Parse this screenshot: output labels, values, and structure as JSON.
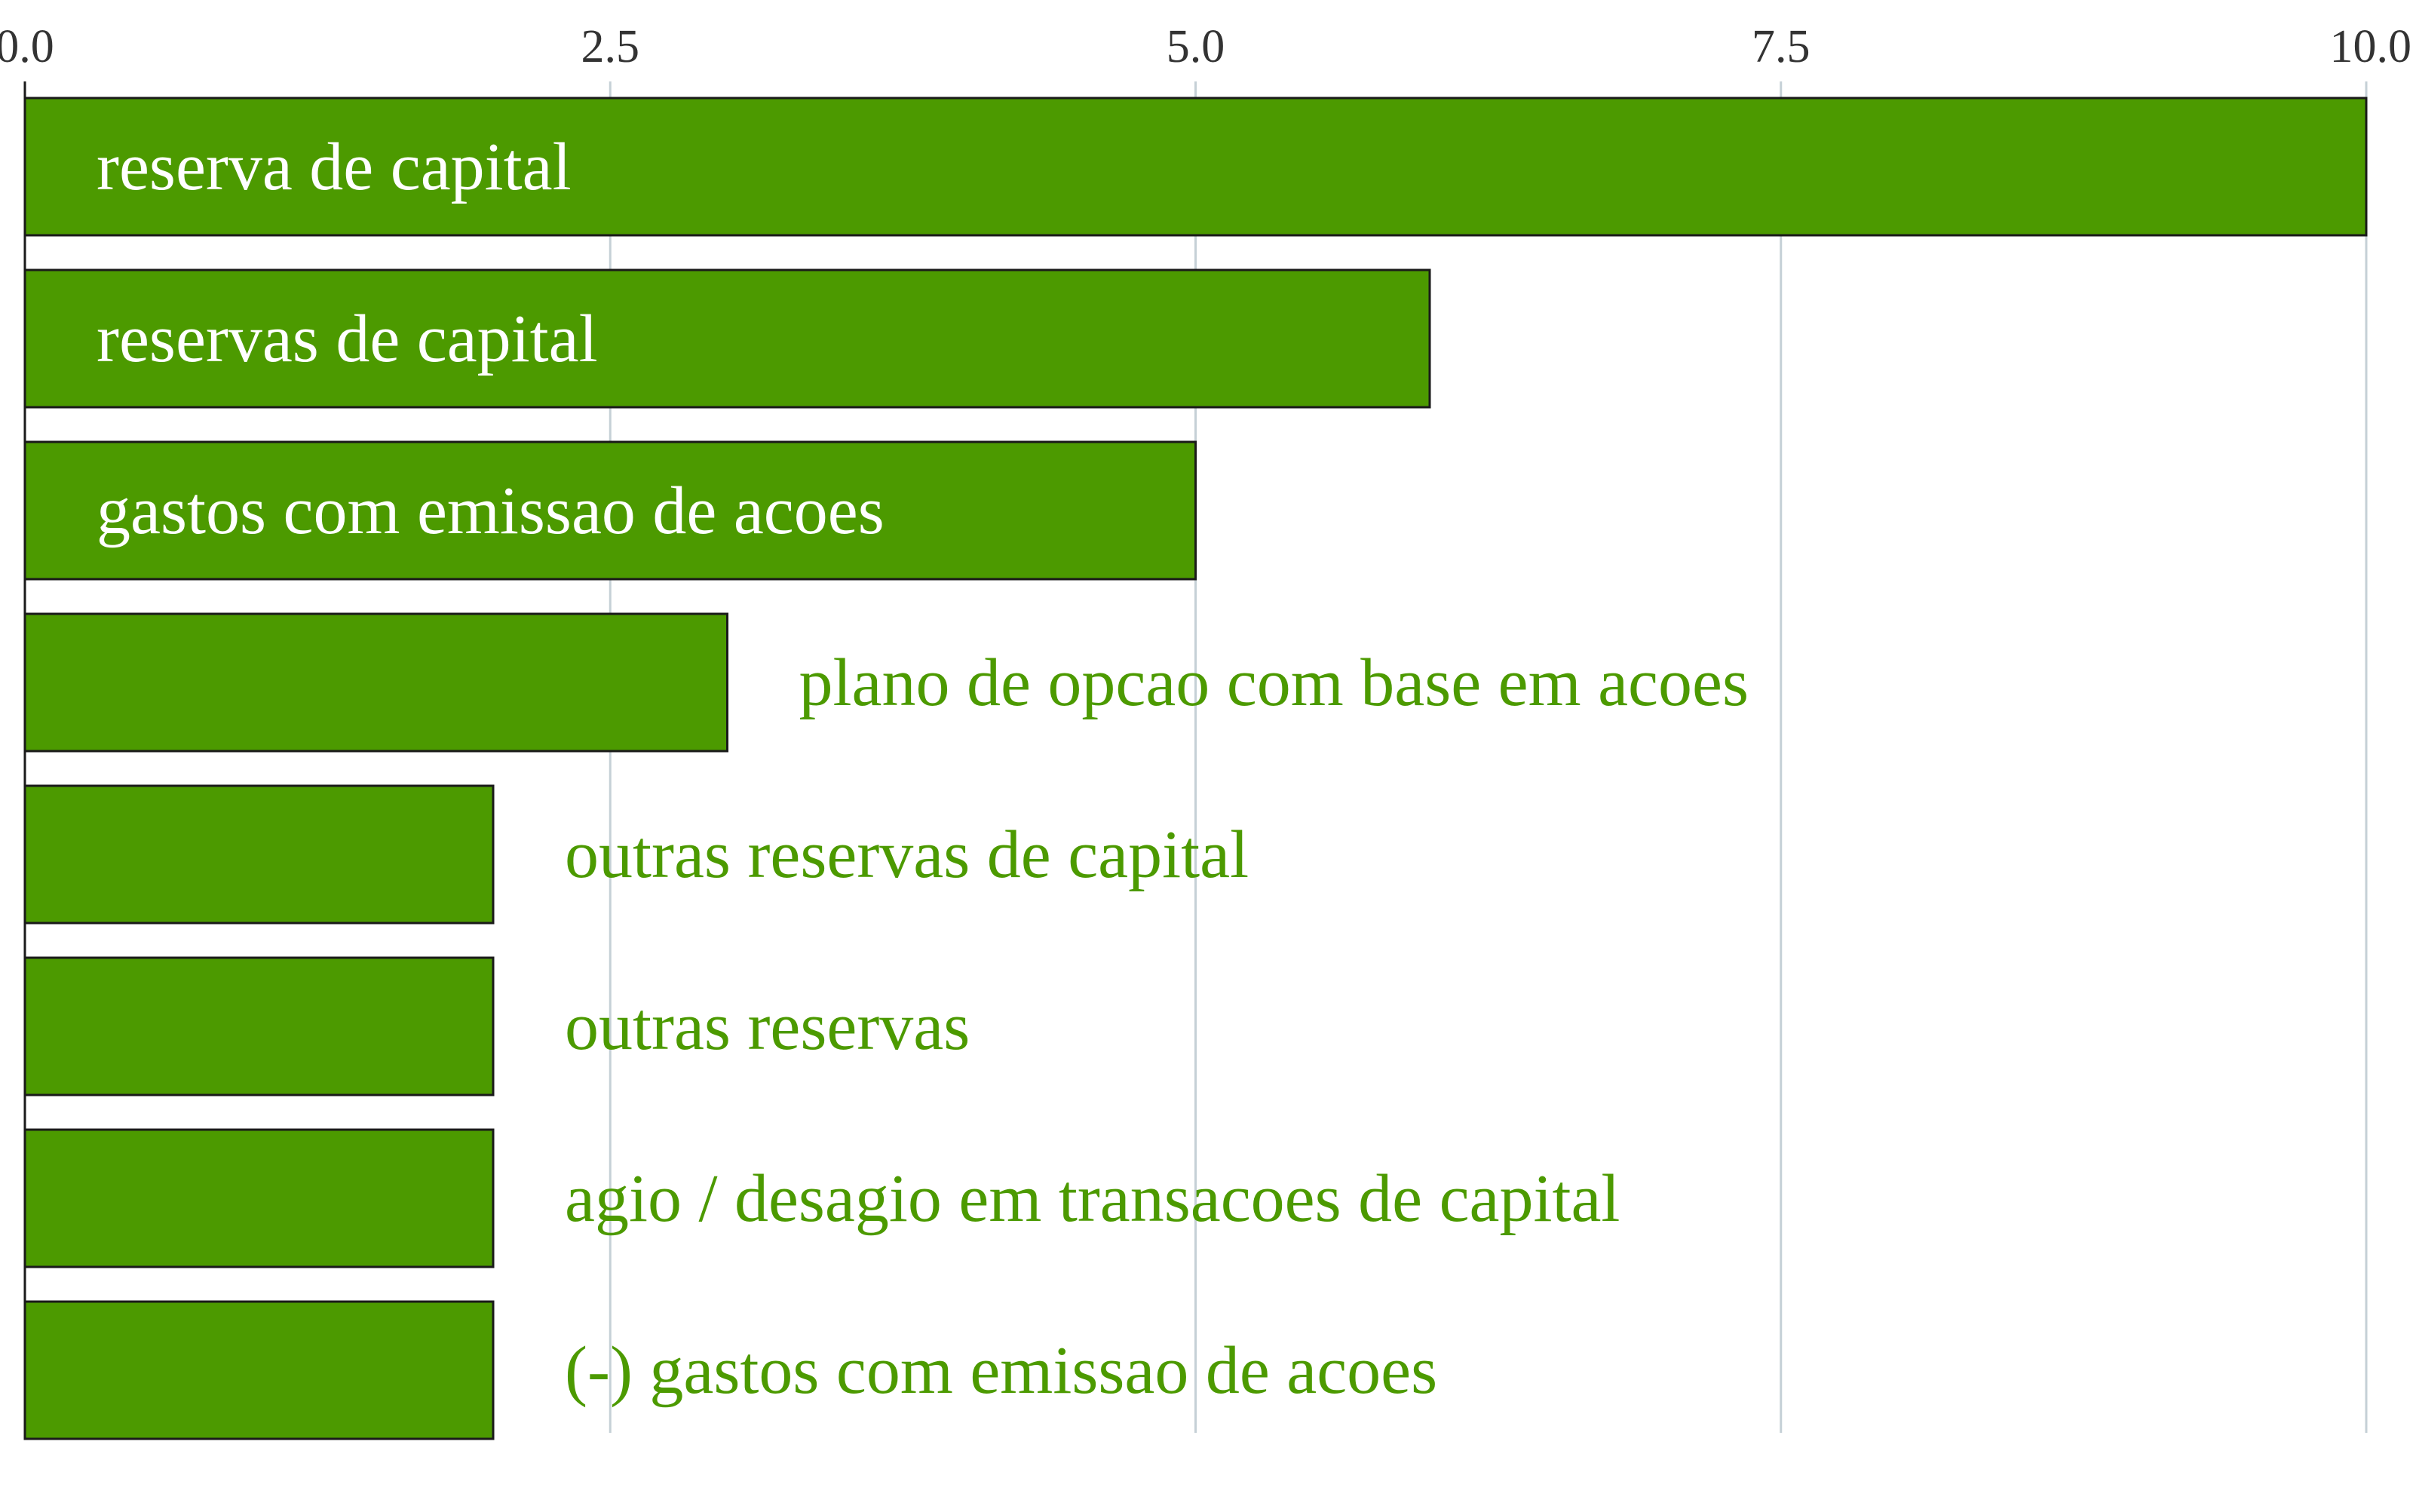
{
  "chart_data": {
    "type": "bar",
    "orientation": "horizontal",
    "categories": [
      "reserva de capital",
      "reservas de capital",
      "gastos com emissao de acoes",
      "plano de opcao com base em acoes",
      "outras reservas de capital",
      "outras reservas",
      "agio / desagio em transacoes de capital",
      "(-) gastos com emissao de acoes"
    ],
    "values": [
      10,
      6,
      5,
      3,
      2,
      2,
      2,
      2
    ],
    "xlim": [
      0,
      10
    ],
    "xticks": [
      "0.0",
      "2.5",
      "5.0",
      "7.5",
      "10.0"
    ],
    "title": "",
    "xlabel": "",
    "ylabel": "",
    "grid": true,
    "bar_color": "#4c9a00",
    "bar_edge_color": "#1a1a1a",
    "label_inside_color": "#ffffff",
    "label_outside_color": "#4c9a00",
    "grid_color": "#c5d0d6"
  }
}
